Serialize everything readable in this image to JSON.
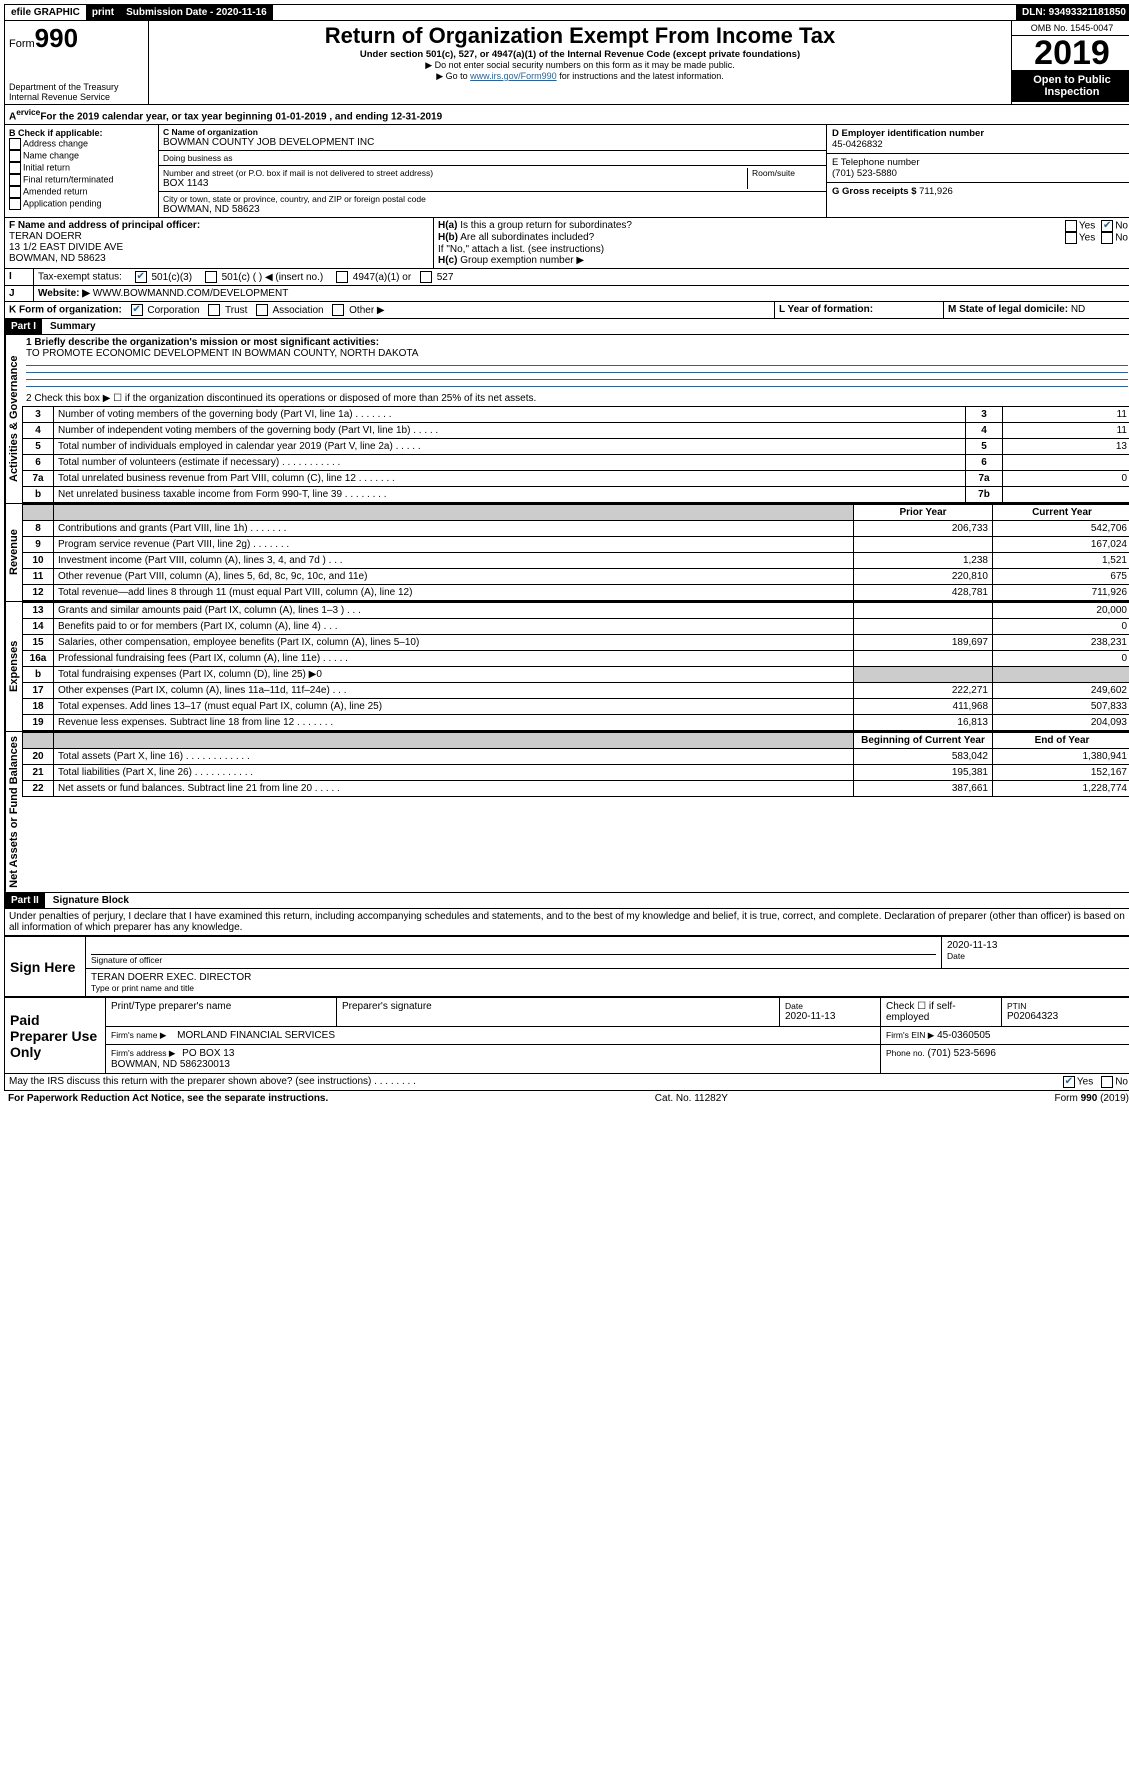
{
  "topbar": {
    "efile": "efile GRAPHIC",
    "print": "print",
    "subdate_label": "Submission Date - 2020-11-16",
    "dln": "DLN: 93493321181850"
  },
  "header": {
    "form_label": "Form",
    "form_num": "990",
    "dept": "Department of the Treasury\nInternal Revenue Service",
    "title": "Return of Organization Exempt From Income Tax",
    "sub1": "Under section 501(c), 527, or 4947(a)(1) of the Internal Revenue Code (except private foundations)",
    "sub2": "▶ Do not enter social security numbers on this form as it may be made public.",
    "sub3_pre": "▶ Go to ",
    "sub3_link": "www.irs.gov/Form990",
    "sub3_post": " for instructions and the latest information.",
    "omb": "OMB No. 1545-0047",
    "year": "2019",
    "open": "Open to Public Inspection"
  },
  "lineA": {
    "text_pre": "For the 2019 calendar year, or tax year beginning ",
    "begin": "01-01-2019",
    "mid": " , and ending ",
    "end": "12-31-2019"
  },
  "sectionB": {
    "check_label": "B Check if applicable:",
    "opts": [
      "Address change",
      "Name change",
      "Initial return",
      "Final return/terminated",
      "Amended return",
      "Application pending"
    ],
    "c_label": "C Name of organization",
    "org": "BOWMAN COUNTY JOB DEVELOPMENT INC",
    "dba_label": "Doing business as",
    "addr_label": "Number and street (or P.O. box if mail is not delivered to street address)",
    "room_label": "Room/suite",
    "addr": "BOX 1143",
    "city_label": "City or town, state or province, country, and ZIP or foreign postal code",
    "city": "BOWMAN, ND  58623",
    "d_label": "D Employer identification number",
    "ein": "45-0426832",
    "e_label": "E Telephone number",
    "phone": "(701) 523-5880",
    "g_label": "G Gross receipts $ ",
    "gross": "711,926"
  },
  "sectionF": {
    "f_label": "F Name and address of principal officer:",
    "name": "TERAN DOERR",
    "addr1": "13 1/2 EAST DIVIDE AVE",
    "addr2": "BOWMAN, ND  58623",
    "ha_label": "H(a)  Is this a group return for subordinates?",
    "hb_label": "H(b)  Are all subordinates included?",
    "hb_note": "If \"No,\" attach a list. (see instructions)",
    "hc_label": "H(c)  Group exemption number ▶",
    "yes": "Yes",
    "no": "No"
  },
  "sectionI": {
    "label": "Tax-exempt status:",
    "o1": "501(c)(3)",
    "o2": "501(c) (  ) ◀ (insert no.)",
    "o3": "4947(a)(1) or",
    "o4": "527"
  },
  "sectionJ": {
    "label": "Website: ▶",
    "value": "WWW.BOWMANND.COM/DEVELOPMENT"
  },
  "sectionK": {
    "label": "K Form of organization:",
    "corp": "Corporation",
    "trust": "Trust",
    "assoc": "Association",
    "other": "Other ▶",
    "l_label": "L Year of formation:",
    "m_label": "M State of legal domicile: ",
    "m_val": "ND"
  },
  "partI": {
    "title": "Part I",
    "subtitle": "Summary",
    "q1_label": "1  Briefly describe the organization's mission or most significant activities:",
    "mission": "TO PROMOTE ECONOMIC DEVELOPMENT IN BOWMAN COUNTY, NORTH DAKOTA",
    "q2": "2   Check this box ▶ ☐  if the organization discontinued its operations or disposed of more than 25% of its net assets.",
    "prior_year": "Prior Year",
    "current_year": "Current Year",
    "begin_cy": "Beginning of Current Year",
    "end_year": "End of Year",
    "vlabels": {
      "gov": "Activities & Governance",
      "rev": "Revenue",
      "exp": "Expenses",
      "net": "Net Assets or Fund Balances"
    },
    "gov_rows": [
      {
        "n": "3",
        "t": "Number of voting members of the governing body (Part VI, line 1a)   .    .    .    .    .    .    .",
        "box": "3",
        "v": "11"
      },
      {
        "n": "4",
        "t": "Number of independent voting members of the governing body (Part VI, line 1b)   .    .    .    .    .",
        "box": "4",
        "v": "11"
      },
      {
        "n": "5",
        "t": "Total number of individuals employed in calendar year 2019 (Part V, line 2a)   .    .    .    .    .",
        "box": "5",
        "v": "13"
      },
      {
        "n": "6",
        "t": "Total number of volunteers (estimate if necessary)   .    .    .    .    .    .    .    .    .    .    .",
        "box": "6",
        "v": ""
      },
      {
        "n": "7a",
        "t": "Total unrelated business revenue from Part VIII, column (C), line 12   .    .    .    .    .    .    .",
        "box": "7a",
        "v": "0"
      },
      {
        "n": "b",
        "t": "Net unrelated business taxable income from Form 990-T, line 39   .    .    .    .    .    .    .    .",
        "box": "7b",
        "v": ""
      }
    ],
    "rev_rows": [
      {
        "n": "8",
        "t": "Contributions and grants (Part VIII, line 1h)   .    .    .    .    .    .    .",
        "py": "206,733",
        "cy": "542,706"
      },
      {
        "n": "9",
        "t": "Program service revenue (Part VIII, line 2g)   .    .    .    .    .    .    .",
        "py": "",
        "cy": "167,024"
      },
      {
        "n": "10",
        "t": "Investment income (Part VIII, column (A), lines 3, 4, and 7d )   .    .    .",
        "py": "1,238",
        "cy": "1,521"
      },
      {
        "n": "11",
        "t": "Other revenue (Part VIII, column (A), lines 5, 6d, 8c, 9c, 10c, and 11e)",
        "py": "220,810",
        "cy": "675"
      },
      {
        "n": "12",
        "t": "Total revenue—add lines 8 through 11 (must equal Part VIII, column (A), line 12)",
        "py": "428,781",
        "cy": "711,926"
      }
    ],
    "exp_rows": [
      {
        "n": "13",
        "t": "Grants and similar amounts paid (Part IX, column (A), lines 1–3 )   .    .    .",
        "py": "",
        "cy": "20,000"
      },
      {
        "n": "14",
        "t": "Benefits paid to or for members (Part IX, column (A), line 4)   .    .    .",
        "py": "",
        "cy": "0"
      },
      {
        "n": "15",
        "t": "Salaries, other compensation, employee benefits (Part IX, column (A), lines 5–10)",
        "py": "189,697",
        "cy": "238,231"
      },
      {
        "n": "16a",
        "t": "Professional fundraising fees (Part IX, column (A), line 11e)   .    .    .    .    .",
        "py": "",
        "cy": "0"
      },
      {
        "n": "b",
        "t": "Total fundraising expenses (Part IX, column (D), line 25) ▶0",
        "py": null,
        "cy": null
      },
      {
        "n": "17",
        "t": "Other expenses (Part IX, column (A), lines 11a–11d, 11f–24e)   .    .    .",
        "py": "222,271",
        "cy": "249,602"
      },
      {
        "n": "18",
        "t": "Total expenses. Add lines 13–17 (must equal Part IX, column (A), line 25)",
        "py": "411,968",
        "cy": "507,833"
      },
      {
        "n": "19",
        "t": "Revenue less expenses. Subtract line 18 from line 12   .    .    .    .    .    .    .",
        "py": "16,813",
        "cy": "204,093"
      }
    ],
    "net_rows": [
      {
        "n": "20",
        "t": "Total assets (Part X, line 16)   .    .    .    .    .    .    .    .    .    .    .    .",
        "py": "583,042",
        "cy": "1,380,941"
      },
      {
        "n": "21",
        "t": "Total liabilities (Part X, line 26)   .    .    .    .    .    .    .    .    .    .    .",
        "py": "195,381",
        "cy": "152,167"
      },
      {
        "n": "22",
        "t": "Net assets or fund balances. Subtract line 21 from line 20   .    .    .    .    .",
        "py": "387,661",
        "cy": "1,228,774"
      }
    ]
  },
  "partII": {
    "title": "Part II",
    "subtitle": "Signature Block",
    "perjury": "Under penalties of perjury, I declare that I have examined this return, including accompanying schedules and statements, and to the best of my knowledge and belief, it is true, correct, and complete. Declaration of preparer (other than officer) is based on all information of which preparer has any knowledge.",
    "sign_here": "Sign Here",
    "sig_officer": "Signature of officer",
    "sig_date": "2020-11-13",
    "date_label": "Date",
    "officer_name": "TERAN DOERR EXEC. DIRECTOR",
    "type_name": "Type or print name and title",
    "paid": "Paid Preparer Use Only",
    "prep_name_label": "Print/Type preparer's name",
    "prep_sig_label": "Preparer's signature",
    "prep_date_label": "Date",
    "prep_date": "2020-11-13",
    "check_self": "Check ☐ if self-employed",
    "ptin_label": "PTIN",
    "ptin": "P02064323",
    "firm_name_label": "Firm's name   ▶",
    "firm_name": "MORLAND FINANCIAL SERVICES",
    "firm_ein_label": "Firm's EIN ▶",
    "firm_ein": "45-0360505",
    "firm_addr_label": "Firm's address ▶",
    "firm_addr": "PO BOX 13\nBOWMAN, ND  586230013",
    "phone_label": "Phone no.",
    "phone": "(701) 523-5696",
    "discuss": "May the IRS discuss this return with the preparer shown above? (see instructions)    .    .    .    .    .    .    .    .",
    "yes": "Yes",
    "no": "No"
  },
  "footer": {
    "left": "For Paperwork Reduction Act Notice, see the separate instructions.",
    "mid": "Cat. No. 11282Y",
    "right": "Form 990 (2019)"
  }
}
